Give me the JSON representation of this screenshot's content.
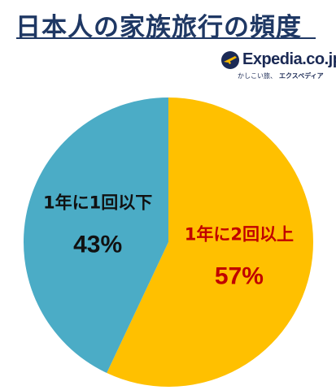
{
  "chart_data": {
    "type": "pie",
    "title": "日本人の家族旅行の頻度",
    "slices": [
      {
        "label": "1年に2回以上",
        "value": 57,
        "value_label": "57%",
        "color": "#ffc000",
        "text_color": "#c00000"
      },
      {
        "label": "1年に1回以下",
        "value": 43,
        "value_label": "43%",
        "color": "#4bacc6",
        "text_color": "#111111"
      }
    ],
    "start": "top, clockwise"
  },
  "brand": {
    "name": "Expedia.co.jp",
    "tagline_a": "かしこい旅、",
    "tagline_b": "エクスペディア",
    "globe_color": "#1b2a55",
    "plane_color": "#f6b800"
  }
}
